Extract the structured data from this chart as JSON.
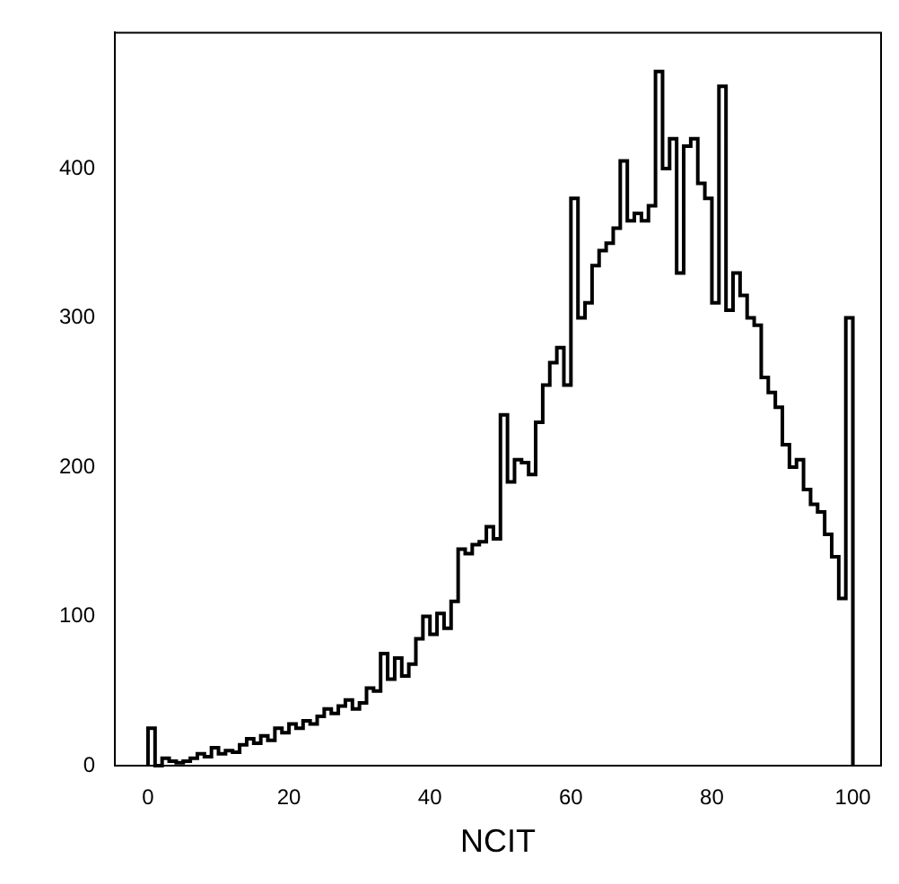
{
  "chart_data": {
    "type": "histogram",
    "xlabel": "NCIT",
    "color": "#000000",
    "bins": [
      0,
      1,
      2,
      3,
      4,
      5,
      6,
      7,
      8,
      9,
      10,
      11,
      12,
      13,
      14,
      15,
      16,
      17,
      18,
      19,
      20,
      21,
      22,
      23,
      24,
      25,
      26,
      27,
      28,
      29,
      30,
      31,
      32,
      33,
      34,
      35,
      36,
      37,
      38,
      39,
      40,
      41,
      42,
      43,
      44,
      45,
      46,
      47,
      48,
      49,
      50,
      51,
      52,
      53,
      54,
      55,
      56,
      57,
      58,
      59,
      60,
      61,
      62,
      63,
      64,
      65,
      66,
      67,
      68,
      69,
      70,
      71,
      72,
      73,
      74,
      75,
      76,
      77,
      78,
      79,
      80,
      81,
      82,
      83,
      84,
      85,
      86,
      87,
      88,
      89,
      90,
      91,
      92,
      93,
      94,
      95,
      96,
      97,
      98,
      99,
      100
    ],
    "values": [
      25,
      0,
      5,
      3,
      2,
      3,
      5,
      8,
      6,
      12,
      8,
      10,
      9,
      14,
      18,
      15,
      20,
      17,
      25,
      22,
      28,
      25,
      30,
      28,
      33,
      38,
      35,
      40,
      44,
      38,
      42,
      52,
      50,
      75,
      58,
      72,
      60,
      68,
      85,
      100,
      88,
      102,
      92,
      110,
      145,
      142,
      148,
      150,
      160,
      152,
      235,
      190,
      205,
      203,
      195,
      230,
      255,
      270,
      280,
      255,
      380,
      300,
      310,
      335,
      345,
      350,
      360,
      405,
      365,
      370,
      365,
      375,
      465,
      400,
      420,
      330,
      415,
      420,
      390,
      380,
      310,
      455,
      305,
      330,
      315,
      300,
      295,
      260,
      250,
      240,
      215,
      200,
      205,
      185,
      175,
      170,
      155,
      140,
      112,
      300
    ],
    "xlim": [
      -4.7,
      104
    ],
    "ylim": [
      0,
      491
    ],
    "xticks": [
      0,
      20,
      40,
      60,
      80,
      100
    ],
    "yticks": [
      0,
      100,
      200,
      300,
      400
    ],
    "grid": false
  }
}
